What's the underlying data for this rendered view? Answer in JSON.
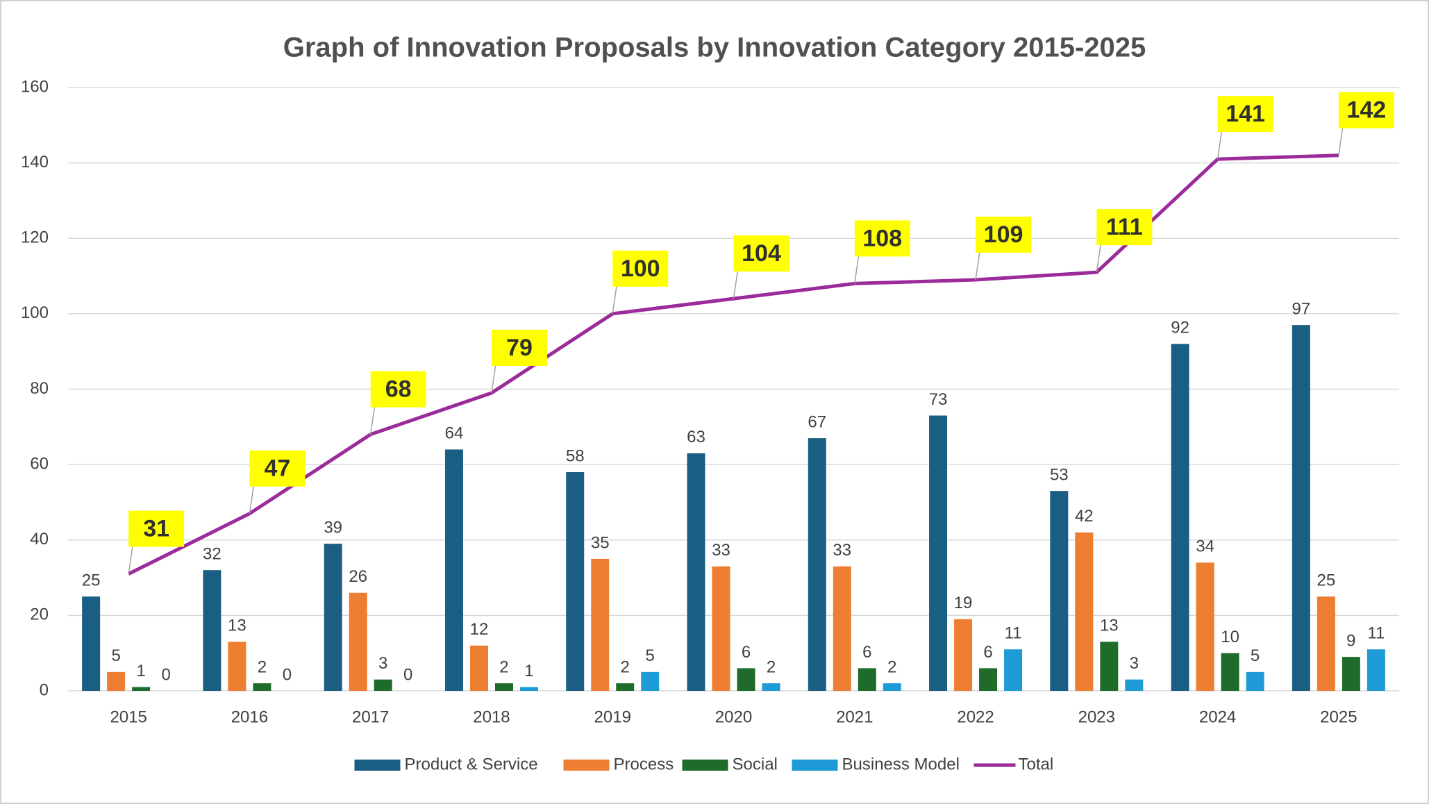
{
  "chart_data": {
    "type": "bar",
    "title": "Graph of Innovation Proposals by Innovation Category 2015-2025",
    "categories": [
      "2015",
      "2016",
      "2017",
      "2018",
      "2019",
      "2020",
      "2021",
      "2022",
      "2023",
      "2024",
      "2025"
    ],
    "series": [
      {
        "name": "Product & Service",
        "color": "#1a5e84",
        "values": [
          25,
          32,
          39,
          64,
          58,
          63,
          67,
          73,
          53,
          92,
          97
        ]
      },
      {
        "name": "Process",
        "color": "#ed7d31",
        "values": [
          5,
          13,
          26,
          12,
          35,
          33,
          33,
          19,
          42,
          34,
          25
        ]
      },
      {
        "name": "Social",
        "color": "#1e6b2a",
        "values": [
          1,
          2,
          3,
          2,
          2,
          6,
          6,
          6,
          13,
          10,
          9
        ]
      },
      {
        "name": "Business Model",
        "color": "#1e9ad6",
        "values": [
          0,
          0,
          0,
          1,
          5,
          2,
          2,
          11,
          3,
          5,
          11
        ]
      },
      {
        "name": "Total",
        "type": "line",
        "color": "#9b2a9b",
        "label_background": "#ffff00",
        "values": [
          31,
          47,
          68,
          79,
          100,
          104,
          108,
          109,
          111,
          141,
          142
        ]
      }
    ],
    "ylim": [
      0,
      160
    ],
    "yticks": [
      0,
      20,
      40,
      60,
      80,
      100,
      120,
      140,
      160
    ],
    "grid": true,
    "legend": "bottom"
  }
}
